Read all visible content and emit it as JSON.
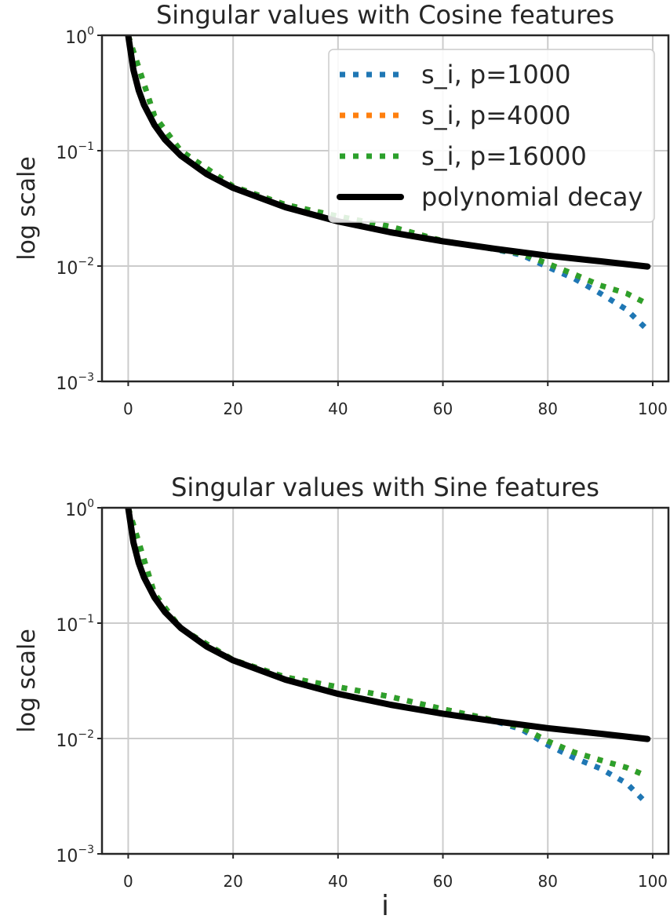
{
  "chart_data": [
    {
      "type": "line",
      "title": "Singular values with Cosine features",
      "xlabel": "",
      "ylabel": "log scale",
      "yscale": "log",
      "xlim": [
        -5,
        103
      ],
      "ylim": [
        0.001,
        1
      ],
      "xticks": [
        "0",
        "20",
        "40",
        "60",
        "80",
        "100"
      ],
      "xtick_values": [
        0,
        20,
        40,
        60,
        80,
        100
      ],
      "yticks": [
        {
          "base": "10",
          "exp": "0",
          "value": 1
        },
        {
          "base": "10",
          "exp": "−1",
          "value": 0.1
        },
        {
          "base": "10",
          "exp": "−2",
          "value": 0.01
        },
        {
          "base": "10",
          "exp": "−3",
          "value": 0.001
        }
      ],
      "grid": true,
      "legend_position": "top-right",
      "series": [
        {
          "name": "s_i, p=1000",
          "color": "#1f77b4",
          "style": "dotted",
          "x": [
            0,
            5,
            10,
            20,
            30,
            40,
            50,
            60,
            68,
            75,
            80,
            85,
            90,
            95,
            99
          ],
          "y": [
            1.0,
            0.2,
            0.1,
            0.049,
            0.034,
            0.027,
            0.022,
            0.0165,
            0.0145,
            0.0125,
            0.0098,
            0.0078,
            0.0058,
            0.0042,
            0.0028
          ]
        },
        {
          "name": "s_i, p=4000",
          "color": "#ff7f0e",
          "style": "dotted",
          "x": [
            0,
            5,
            10,
            20,
            30,
            40,
            50,
            60,
            68,
            75,
            80,
            85,
            90,
            95,
            99
          ],
          "y": [
            1.0,
            0.2,
            0.1,
            0.049,
            0.034,
            0.027,
            0.022,
            0.0165,
            0.0145,
            0.0128,
            0.0105,
            0.0085,
            0.0068,
            0.0058,
            0.0047
          ]
        },
        {
          "name": "s_i, p=16000",
          "color": "#2ca02c",
          "style": "dotted",
          "x": [
            0,
            5,
            10,
            20,
            30,
            40,
            50,
            60,
            68,
            75,
            80,
            85,
            90,
            95,
            99
          ],
          "y": [
            1.0,
            0.2,
            0.1,
            0.049,
            0.034,
            0.027,
            0.022,
            0.0165,
            0.0145,
            0.0128,
            0.0105,
            0.0085,
            0.0068,
            0.0058,
            0.0047
          ]
        },
        {
          "name": "polynomial decay",
          "color": "#000000",
          "style": "solid",
          "x": [
            0,
            1,
            2,
            3,
            5,
            7,
            10,
            15,
            20,
            30,
            40,
            50,
            60,
            70,
            80,
            90,
            99
          ],
          "y": [
            1.0,
            0.5,
            0.333,
            0.25,
            0.167,
            0.125,
            0.0909,
            0.0625,
            0.0476,
            0.0323,
            0.0244,
            0.0196,
            0.0164,
            0.0141,
            0.0123,
            0.011,
            0.0099
          ]
        }
      ]
    },
    {
      "type": "line",
      "title": "Singular values with Sine features",
      "xlabel": "i",
      "ylabel": "log scale",
      "yscale": "log",
      "xlim": [
        -5,
        103
      ],
      "ylim": [
        0.001,
        1
      ],
      "xticks": [
        "0",
        "20",
        "40",
        "60",
        "80",
        "100"
      ],
      "xtick_values": [
        0,
        20,
        40,
        60,
        80,
        100
      ],
      "yticks": [
        {
          "base": "10",
          "exp": "0",
          "value": 1
        },
        {
          "base": "10",
          "exp": "−1",
          "value": 0.1
        },
        {
          "base": "10",
          "exp": "−2",
          "value": 0.01
        },
        {
          "base": "10",
          "exp": "−3",
          "value": 0.001
        }
      ],
      "grid": true,
      "legend_position": "none",
      "series": [
        {
          "color": "#1f77b4",
          "style": "dotted",
          "x": [
            0,
            5,
            10,
            20,
            30,
            40,
            50,
            60,
            68,
            75,
            80,
            85,
            90,
            95,
            99
          ],
          "y": [
            1.0,
            0.18,
            0.09,
            0.048,
            0.034,
            0.028,
            0.023,
            0.018,
            0.015,
            0.012,
            0.0088,
            0.0068,
            0.0055,
            0.0041,
            0.0027
          ]
        },
        {
          "color": "#ff7f0e",
          "style": "dotted",
          "x": [
            0,
            5,
            10,
            20,
            30,
            40,
            50,
            60,
            68,
            75,
            80,
            85,
            90,
            95,
            99
          ],
          "y": [
            1.0,
            0.18,
            0.09,
            0.048,
            0.034,
            0.028,
            0.023,
            0.018,
            0.015,
            0.0125,
            0.0095,
            0.0076,
            0.0065,
            0.0056,
            0.0047
          ]
        },
        {
          "color": "#2ca02c",
          "style": "dotted",
          "x": [
            0,
            5,
            10,
            20,
            30,
            40,
            50,
            60,
            68,
            75,
            80,
            85,
            90,
            95,
            99
          ],
          "y": [
            1.0,
            0.18,
            0.09,
            0.048,
            0.034,
            0.028,
            0.023,
            0.018,
            0.015,
            0.0125,
            0.0095,
            0.0076,
            0.0065,
            0.0056,
            0.0047
          ]
        },
        {
          "color": "#000000",
          "style": "solid",
          "x": [
            0,
            1,
            2,
            3,
            5,
            7,
            10,
            15,
            20,
            30,
            40,
            50,
            60,
            70,
            80,
            90,
            99
          ],
          "y": [
            1.0,
            0.5,
            0.333,
            0.25,
            0.167,
            0.125,
            0.0909,
            0.0625,
            0.0476,
            0.0323,
            0.0244,
            0.0196,
            0.0164,
            0.0141,
            0.0123,
            0.011,
            0.0099
          ]
        }
      ]
    }
  ]
}
